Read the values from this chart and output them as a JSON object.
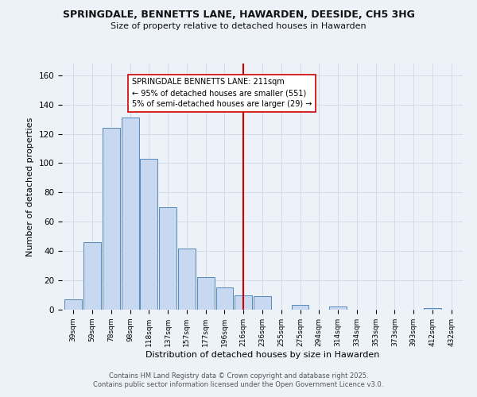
{
  "title": "SPRINGDALE, BENNETTS LANE, HAWARDEN, DEESIDE, CH5 3HG",
  "subtitle": "Size of property relative to detached houses in Hawarden",
  "xlabel": "Distribution of detached houses by size in Hawarden",
  "ylabel": "Number of detached properties",
  "bar_labels": [
    "39sqm",
    "59sqm",
    "78sqm",
    "98sqm",
    "118sqm",
    "137sqm",
    "157sqm",
    "177sqm",
    "196sqm",
    "216sqm",
    "236sqm",
    "255sqm",
    "275sqm",
    "294sqm",
    "314sqm",
    "334sqm",
    "353sqm",
    "373sqm",
    "393sqm",
    "412sqm",
    "432sqm"
  ],
  "bar_values": [
    7,
    46,
    124,
    131,
    103,
    70,
    42,
    22,
    15,
    10,
    9,
    0,
    3,
    0,
    2,
    0,
    0,
    0,
    0,
    1,
    0
  ],
  "bar_color": "#c8d8f0",
  "bar_edge_color": "#5588bb",
  "background_color": "#edf2f9",
  "grid_color": "#d0d8e8",
  "vline_x": 9.0,
  "vline_color": "#cc0000",
  "annotation_text": "SPRINGDALE BENNETTS LANE: 211sqm\n← 95% of detached houses are smaller (551)\n5% of semi-detached houses are larger (29) →",
  "annotation_box_color": "#ffffff",
  "annotation_box_edge": "#cc0000",
  "ylim": [
    0,
    168
  ],
  "yticks": [
    0,
    20,
    40,
    60,
    80,
    100,
    120,
    140,
    160
  ],
  "footer1": "Contains HM Land Registry data © Crown copyright and database right 2025.",
  "footer2": "Contains public sector information licensed under the Open Government Licence v3.0."
}
